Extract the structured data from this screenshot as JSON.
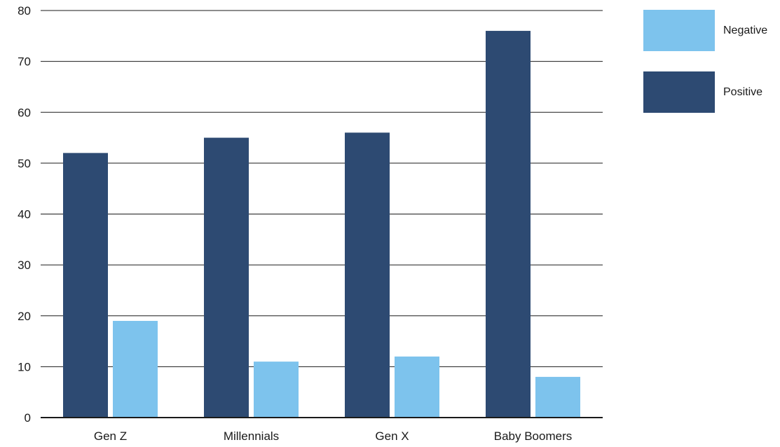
{
  "chart_data": {
    "type": "bar",
    "categories": [
      "Gen Z",
      "Millennials",
      "Gen X",
      "Baby Boomers"
    ],
    "series": [
      {
        "name": "Positive",
        "values": [
          52,
          55,
          56,
          76
        ],
        "color": "#2d4a72"
      },
      {
        "name": "Negative",
        "values": [
          19,
          11,
          12,
          8
        ],
        "color": "#7dc3ed"
      }
    ],
    "y_ticks": [
      "0",
      "10",
      "20",
      "30",
      "40",
      "50",
      "60",
      "70",
      "80"
    ],
    "ylim": [
      0,
      80
    ],
    "grid": true,
    "legend_position": "top-right",
    "legend_order": [
      "Negative",
      "Positive"
    ]
  }
}
